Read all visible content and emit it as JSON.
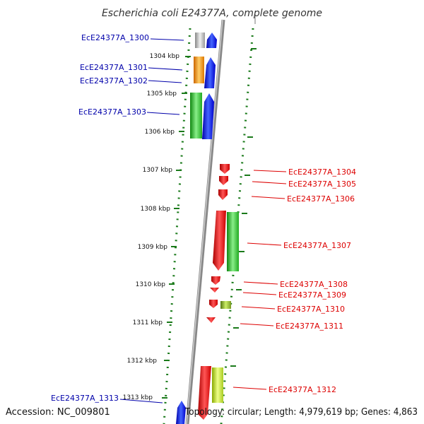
{
  "title": "Escherichia coli E24377A, complete genome",
  "footer": {
    "accession": "Accession: NC_009801",
    "summary": "Topology: circular; Length: 4,979,619 bp; Genes: 4,863"
  },
  "colors": {
    "forward_label": "#0000aa",
    "reverse_label": "#dd0000",
    "backbone": "#888888",
    "ruler": "#1a7a1a"
  },
  "ticks": [
    "1304 kbp",
    "1305 kbp",
    "1306 kbp",
    "1307 kbp",
    "1308 kbp",
    "1309 kbp",
    "1310 kbp",
    "1311 kbp",
    "1312 kbp",
    "1313 kbp"
  ],
  "genes_forward": [
    {
      "label": "EcE24377A_1300",
      "color": "#0000ee",
      "cog": "#bbbbbb"
    },
    {
      "label": "EcE24377A_1301",
      "color": "#0000ee",
      "cog": "#ff9900"
    },
    {
      "label": "EcE24377A_1302",
      "color": "#0000ee",
      "cog": ""
    },
    {
      "label": "EcE24377A_1303",
      "color": "#0000ee",
      "cog": "#33cc33"
    },
    {
      "label": "EcE24377A_1313",
      "color": "#0000ee",
      "cog": ""
    }
  ],
  "genes_reverse": [
    {
      "label": "EcE24377A_1304",
      "color": "#ee0000",
      "cog": ""
    },
    {
      "label": "EcE24377A_1305",
      "color": "#ee0000",
      "cog": ""
    },
    {
      "label": "EcE24377A_1306",
      "color": "#ee0000",
      "cog": ""
    },
    {
      "label": "EcE24377A_1307",
      "color": "#ee0000",
      "cog": "#33cc33"
    },
    {
      "label": "EcE24377A_1308",
      "color": "#ee0000",
      "cog": ""
    },
    {
      "label": "EcE24377A_1309",
      "color": "#ee0000",
      "cog": ""
    },
    {
      "label": "EcE24377A_1310",
      "color": "#ee0000",
      "cog": "#88aa22"
    },
    {
      "label": "EcE24377A_1311",
      "color": "#ee0000",
      "cog": ""
    },
    {
      "label": "EcE24377A_1312",
      "color": "#ee0000",
      "cog": "#99cc22"
    }
  ]
}
